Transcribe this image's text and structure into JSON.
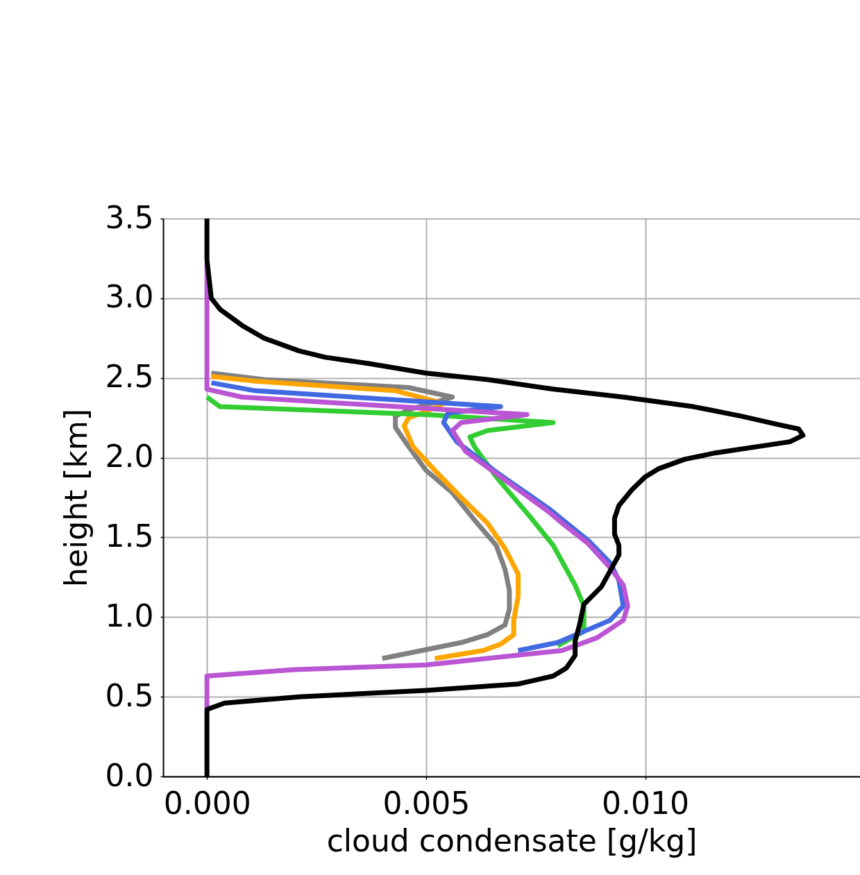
{
  "chart_data": {
    "type": "line",
    "xlabel": "cloud condensate [g/kg]",
    "ylabel": "height [km]",
    "xlim": [
      -0.001,
      0.0149
    ],
    "ylim": [
      0,
      3.5
    ],
    "xticks": [
      {
        "value": 0,
        "label": "0.000"
      },
      {
        "value": 0.005,
        "label": "0.005"
      },
      {
        "value": 0.01,
        "label": "0.010"
      }
    ],
    "yticks": [
      {
        "value": 0,
        "label": "0.0"
      },
      {
        "value": 0.5,
        "label": "0.5"
      },
      {
        "value": 1,
        "label": "1.0"
      },
      {
        "value": 1.5,
        "label": "1.5"
      },
      {
        "value": 2,
        "label": "2.0"
      },
      {
        "value": 2.5,
        "label": "2.5"
      },
      {
        "value": 3,
        "label": "3.0"
      },
      {
        "value": 3.5,
        "label": "3.5"
      }
    ],
    "grid": true,
    "marker": "none",
    "line_style": "solid",
    "series": [
      {
        "color": "#808080",
        "x": [
          0.004,
          0.0049,
          0.0058,
          0.0064,
          0.0068,
          0.0069,
          0.0069,
          0.0068,
          0.0066,
          0.0061,
          0.0056,
          0.005,
          0.0046,
          0.0043,
          0.0043,
          0.0046,
          0.0056,
          0.0046,
          0.0013,
          0.0001
        ],
        "values": [
          0.74,
          0.79,
          0.84,
          0.89,
          0.95,
          1.05,
          1.17,
          1.3,
          1.45,
          1.61,
          1.78,
          1.92,
          2.07,
          2.19,
          2.26,
          2.3,
          2.38,
          2.44,
          2.49,
          2.53
        ]
      },
      {
        "color": "#ffa500",
        "x": [
          0.0052,
          0.0063,
          0.0067,
          0.007,
          0.007,
          0.0071,
          0.0071,
          0.0068,
          0.0064,
          0.0058,
          0.0052,
          0.0047,
          0.0045,
          0.0046,
          0.005,
          0.0054,
          0.0043,
          0.0011,
          0.0001
        ],
        "values": [
          0.74,
          0.79,
          0.83,
          0.89,
          0.98,
          1.13,
          1.27,
          1.43,
          1.59,
          1.75,
          1.92,
          2.07,
          2.2,
          2.25,
          2.29,
          2.34,
          2.42,
          2.48,
          2.51
        ]
      },
      {
        "color": "#32cd32",
        "x": [
          0.008,
          0.0086,
          0.0086,
          0.0084,
          0.0079,
          0.0074,
          0.0066,
          0.0061,
          0.006,
          0.0064,
          0.0079,
          0.005,
          0.0003,
          0
        ],
        "values": [
          0.82,
          0.91,
          1.07,
          1.2,
          1.45,
          1.62,
          1.88,
          2.07,
          2.13,
          2.17,
          2.22,
          2.27,
          2.32,
          2.38
        ]
      },
      {
        "color": "#4169e1",
        "x": [
          0.0071,
          0.008,
          0.0092,
          0.0095,
          0.0094,
          0.0092,
          0.0087,
          0.0078,
          0.0066,
          0.0057,
          0.0054,
          0.0055,
          0.0067,
          0.0011,
          0.0001
        ],
        "values": [
          0.79,
          0.84,
          0.98,
          1.07,
          1.23,
          1.34,
          1.48,
          1.68,
          1.91,
          2.1,
          2.22,
          2.28,
          2.32,
          2.42,
          2.47
        ]
      },
      {
        "color": "#ba55d3",
        "x": [
          0,
          0,
          0.002,
          0.005,
          0.0081,
          0.0089,
          0.0095,
          0.0096,
          0.0095,
          0.0092,
          0.0087,
          0.0081,
          0.0078,
          0.0067,
          0.0059,
          0.0056,
          0.0058,
          0.0073,
          0.0008,
          0,
          0
        ],
        "values": [
          0.42,
          0.63,
          0.67,
          0.7,
          0.79,
          0.87,
          0.98,
          1.07,
          1.2,
          1.31,
          1.46,
          1.59,
          1.66,
          1.88,
          2.04,
          2.17,
          2.22,
          2.27,
          2.38,
          2.43,
          3.22
        ]
      },
      {
        "color": "#000000",
        "x": [
          0,
          0,
          0.0004,
          0.0021,
          0.005,
          0.0071,
          0.0079,
          0.0082,
          0.0084,
          0.0084,
          0.0085,
          0.0086,
          0.009,
          0.0092,
          0.0094,
          0.0094,
          0.0093,
          0.0093,
          0.0094,
          0.0097,
          0.01,
          0.0103,
          0.0109,
          0.0116,
          0.0133,
          0.0136,
          0.0135,
          0.013,
          0.0122,
          0.0111,
          0.0095,
          0.0079,
          0.0064,
          0.005,
          0.0037,
          0.0027,
          0.0021,
          0.0013,
          0.0008,
          0.0003,
          0.0001,
          0,
          0
        ],
        "values": [
          0,
          0.42,
          0.46,
          0.5,
          0.54,
          0.58,
          0.63,
          0.68,
          0.76,
          0.85,
          0.95,
          1.08,
          1.19,
          1.29,
          1.39,
          1.45,
          1.52,
          1.62,
          1.7,
          1.8,
          1.88,
          1.93,
          1.99,
          2.03,
          2.1,
          2.14,
          2.18,
          2.21,
          2.26,
          2.32,
          2.38,
          2.43,
          2.49,
          2.53,
          2.59,
          2.63,
          2.67,
          2.75,
          2.83,
          2.93,
          3.0,
          3.24,
          3.5
        ]
      }
    ]
  }
}
